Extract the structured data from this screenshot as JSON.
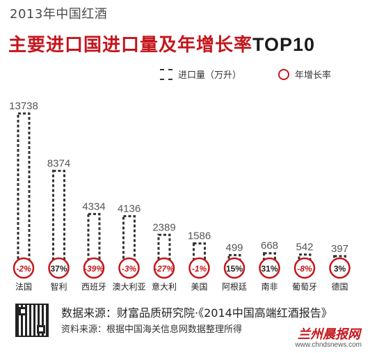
{
  "header": {
    "subtitle": "2013年中国红酒",
    "title": "主要进口国进口量及年增长率",
    "title_suffix": "TOP10"
  },
  "legend": {
    "bar_label": "进口量（万升）",
    "rate_label": "年增长率"
  },
  "chart_data": {
    "type": "bar",
    "categories": [
      "法国",
      "智利",
      "西班牙",
      "澳大利亚",
      "意大利",
      "美国",
      "阿根廷",
      "南非",
      "葡萄牙",
      "德国"
    ],
    "series": [
      {
        "name": "进口量（万升）",
        "values": [
          13738,
          8374,
          4334,
          4136,
          2389,
          1586,
          499,
          668,
          542,
          397
        ]
      },
      {
        "name": "年增长率",
        "values": [
          "-2%",
          "37%",
          "-39%",
          "-3%",
          "-27%",
          "-1%",
          "15%",
          "31%",
          "-8%",
          "3%"
        ]
      }
    ],
    "bar_labels": [
      "13738",
      "8374",
      "4334",
      "4136",
      "2389",
      "1586",
      "499",
      "668",
      "542",
      "397"
    ],
    "ylim": [
      0,
      13738
    ],
    "grid": false,
    "legend_position": "top-right",
    "colors": {
      "bar": "#333333",
      "rate_circle": "#c4161c",
      "rate_text": "#c4161c",
      "title": "#c4161c"
    }
  },
  "footer": {
    "source_main": "数据来源：财富品质研究院·《2014中国高端红酒报告》",
    "source_sub": "资料来源：根据中国海关信息网数据整理所得",
    "logo_text": "兰州晨报网",
    "site": "www.chndsnews.com",
    "qr_icon": "qr-code-icon"
  }
}
